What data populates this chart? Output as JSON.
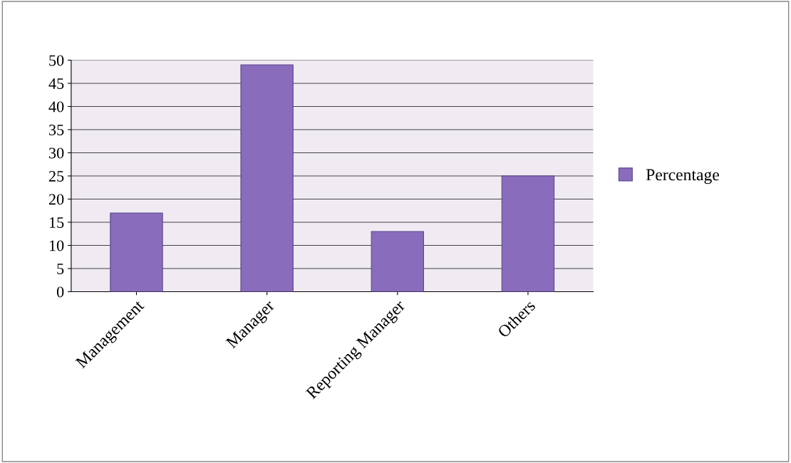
{
  "chart_data": {
    "type": "bar",
    "categories": [
      "Management",
      "Manager",
      "Reporting Manager",
      "Others"
    ],
    "series": [
      {
        "name": "Percentage",
        "color": "#8a6cbd",
        "values": [
          17,
          49,
          13,
          25
        ]
      }
    ],
    "ylim": [
      0,
      50
    ],
    "yticks": [
      0,
      5,
      10,
      15,
      20,
      25,
      30,
      35,
      40,
      45,
      50
    ],
    "grid": "y",
    "legend": "right"
  }
}
